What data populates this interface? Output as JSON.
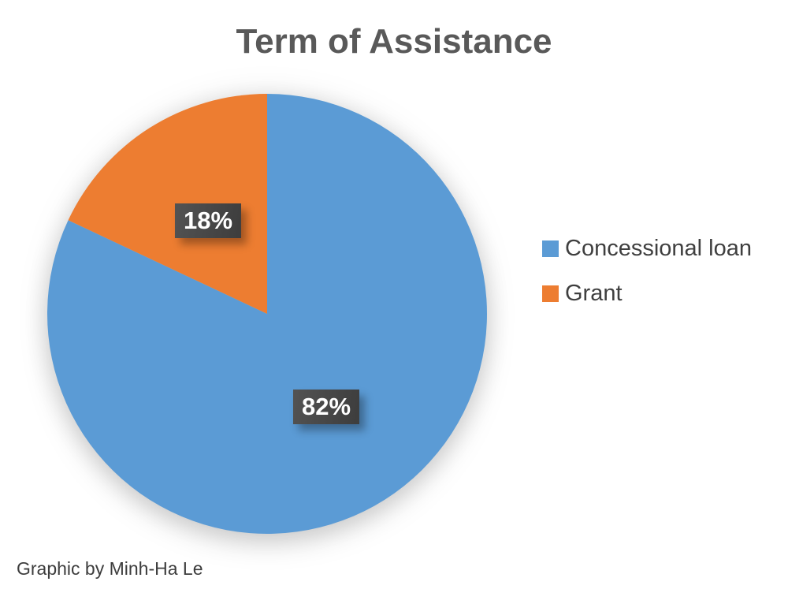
{
  "page": {
    "credit": "Graphic by Minh-Ha Le"
  },
  "chart_data": {
    "type": "pie",
    "title": "Term of Assistance",
    "labels": [
      "Concessional loan",
      "Grant"
    ],
    "values": [
      82,
      18
    ],
    "data_labels": [
      "82%",
      "18%"
    ],
    "colors": [
      "#5B9BD5",
      "#ED7D31"
    ],
    "start_angle_deg": 0,
    "direction": "clockwise",
    "legend_position": "right",
    "legend": [
      {
        "label": "Concessional loan",
        "color": "#5B9BD5"
      },
      {
        "label": "Grant",
        "color": "#ED7D31"
      }
    ],
    "data_label_style": {
      "box_color": "#464646",
      "text_color": "#FFFFFF"
    }
  },
  "colors": {
    "title_text": "#595959",
    "legend_text": "#3F3F3F",
    "credit_text": "#3D3D3D",
    "background": "#FFFFFF"
  }
}
